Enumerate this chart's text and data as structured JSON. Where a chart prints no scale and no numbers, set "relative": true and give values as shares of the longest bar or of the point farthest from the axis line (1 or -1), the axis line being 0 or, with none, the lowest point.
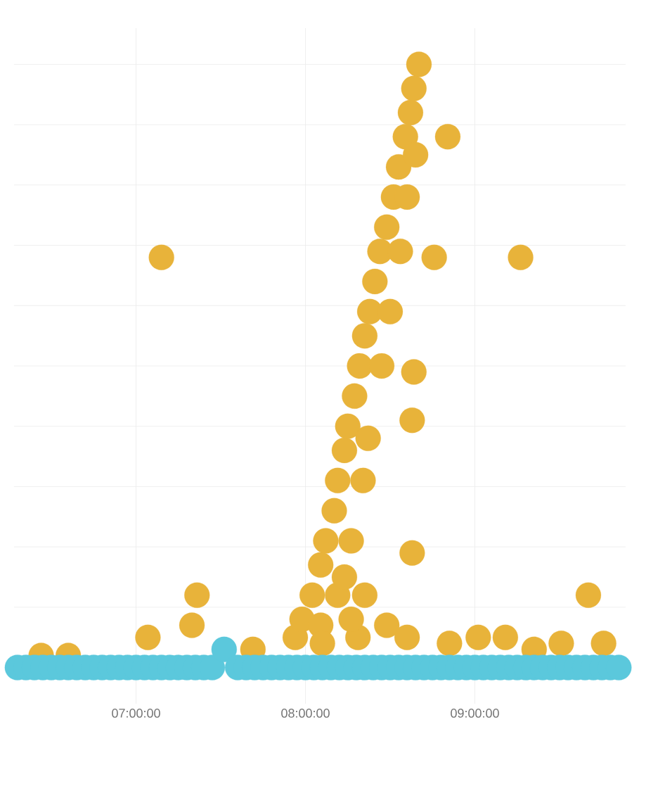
{
  "chart_data": {
    "type": "scatter",
    "relative": true,
    "grid": true,
    "tick_labels": "x",
    "xlim": [
      6.28,
      9.89
    ],
    "xticks": [
      {
        "value": 7,
        "label": "07:00:00"
      },
      {
        "value": 8,
        "label": "08:00:00"
      },
      {
        "value": 9,
        "label": "09:00:00"
      }
    ],
    "series": [
      {
        "color": "#e8b33a",
        "x": [
          7.15,
          9.27,
          8.76,
          8.84,
          8.67,
          7.36,
          7.33,
          7.07,
          9.67,
          8.63,
          8.64,
          8.63,
          6.6,
          7.94,
          7.98,
          8.04,
          8.09,
          8.12,
          8.17,
          8.19,
          8.23,
          8.25,
          8.29,
          8.32,
          8.35,
          8.38,
          8.41,
          8.44,
          8.48,
          8.52,
          8.55,
          8.59,
          8.62,
          8.64,
          8.09,
          8.19,
          8.27,
          8.34,
          8.37,
          8.45,
          8.5,
          8.56,
          8.6,
          8.65,
          8.31,
          8.48,
          8.23,
          8.35,
          8.1,
          8.27,
          8.6,
          8.85,
          9.02,
          9.18,
          9.35,
          9.51,
          9.76,
          7.69,
          6.44
        ],
        "values": [
          0.68,
          0.68,
          0.68,
          0.88,
          1.0,
          0.12,
          0.07,
          0.05,
          0.12,
          0.41,
          0.49,
          0.19,
          0.02,
          0.05,
          0.08,
          0.12,
          0.17,
          0.21,
          0.26,
          0.31,
          0.36,
          0.4,
          0.45,
          0.5,
          0.55,
          0.59,
          0.64,
          0.69,
          0.73,
          0.78,
          0.83,
          0.88,
          0.92,
          0.96,
          0.07,
          0.12,
          0.21,
          0.31,
          0.38,
          0.5,
          0.59,
          0.69,
          0.78,
          0.85,
          0.05,
          0.07,
          0.15,
          0.12,
          0.04,
          0.08,
          0.05,
          0.04,
          0.05,
          0.05,
          0.03,
          0.04,
          0.04,
          0.03,
          0.02
        ]
      },
      {
        "color": "#5bc8dc",
        "x": [
          6.3,
          6.35,
          6.4,
          6.45,
          6.5,
          6.55,
          6.6,
          6.65,
          6.7,
          6.75,
          6.8,
          6.85,
          6.9,
          6.95,
          7.0,
          7.05,
          7.1,
          7.15,
          7.2,
          7.25,
          7.3,
          7.35,
          7.4,
          7.45,
          7.52,
          7.6,
          7.65,
          7.7,
          7.75,
          7.8,
          7.85,
          7.9,
          7.95,
          8.0,
          8.05,
          8.1,
          8.15,
          8.2,
          8.25,
          8.3,
          8.35,
          8.4,
          8.45,
          8.5,
          8.55,
          8.6,
          8.65,
          8.7,
          8.75,
          8.8,
          8.85,
          8.9,
          8.95,
          9.0,
          9.05,
          9.1,
          9.15,
          9.2,
          9.25,
          9.3,
          9.35,
          9.4,
          9.45,
          9.5,
          9.55,
          9.6,
          9.65,
          9.7,
          9.75,
          9.8,
          9.85
        ],
        "values": [
          0,
          0,
          0,
          0,
          0,
          0,
          0,
          0,
          0,
          0,
          0,
          0,
          0,
          0,
          0,
          0,
          0,
          0,
          0,
          0,
          0,
          0,
          0,
          0,
          0.03,
          0,
          0,
          0,
          0,
          0,
          0,
          0,
          0,
          0,
          0,
          0,
          0,
          0,
          0,
          0,
          0,
          0,
          0,
          0,
          0,
          0,
          0,
          0,
          0,
          0,
          0,
          0,
          0,
          0,
          0,
          0,
          0,
          0,
          0,
          0,
          0,
          0,
          0,
          0,
          0,
          0,
          0,
          0,
          0,
          0,
          0
        ]
      }
    ]
  }
}
